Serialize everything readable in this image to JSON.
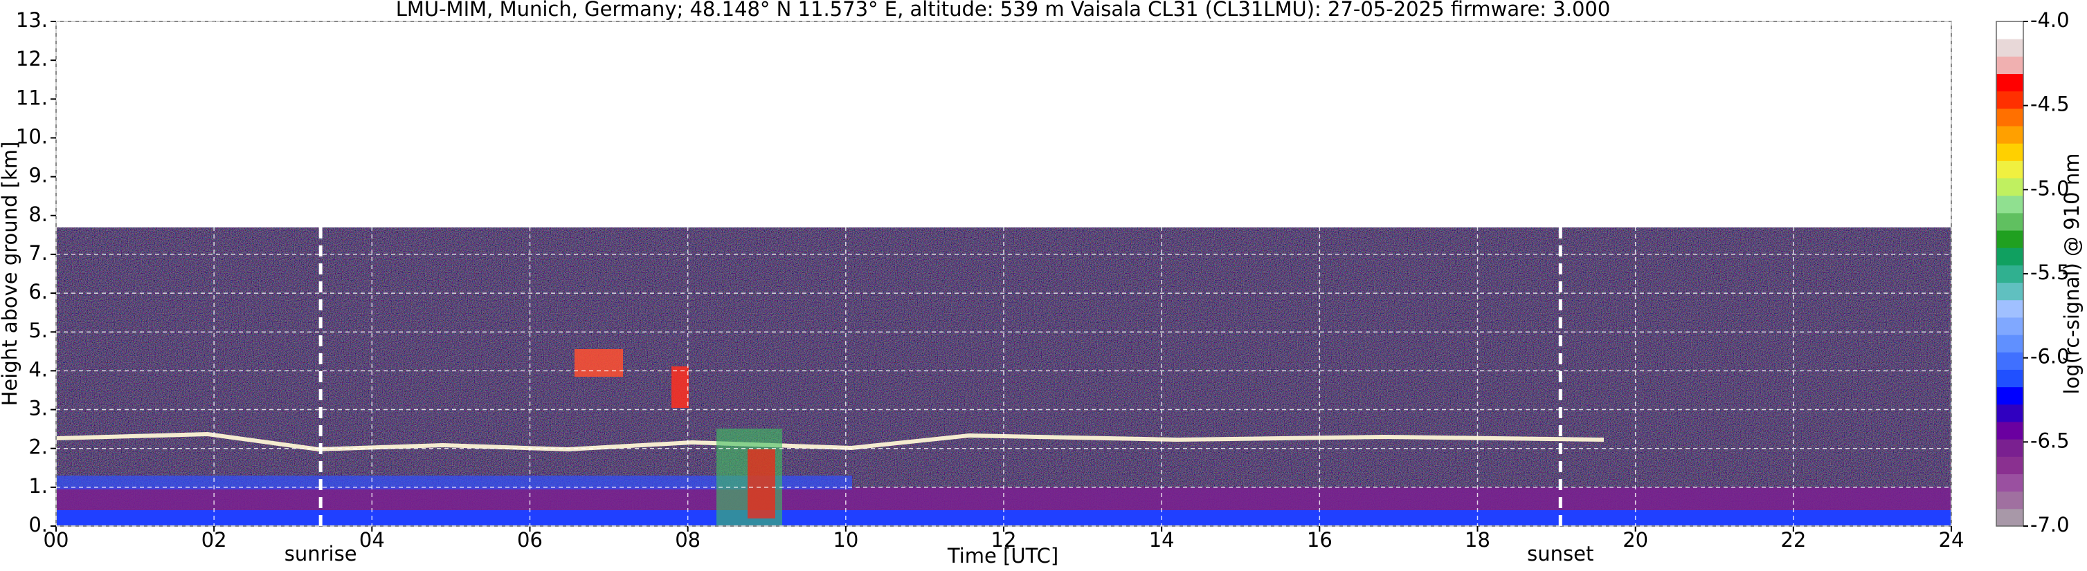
{
  "chart_data": {
    "type": "heatmap",
    "title": "LMU-MIM, Munich, Germany; 48.148° N 11.573° E, altitude: 539 m    Vaisala CL31 (CL31LMU): 27-05-2025    firmware: 3.000",
    "x_label": "Time [UTC]",
    "y_label": "Height above ground [km]",
    "colorbar_label": "log(rc-signal) @ 910 nm",
    "xlim": [
      0,
      24
    ],
    "xticks": [
      {
        "value": 0,
        "label": "00"
      },
      {
        "value": 2,
        "label": "02"
      },
      {
        "value": 4,
        "label": "04"
      },
      {
        "value": 6,
        "label": "06"
      },
      {
        "value": 8,
        "label": "08"
      },
      {
        "value": 10,
        "label": "10"
      },
      {
        "value": 12,
        "label": "12"
      },
      {
        "value": 14,
        "label": "14"
      },
      {
        "value": 16,
        "label": "16"
      },
      {
        "value": 18,
        "label": "18"
      },
      {
        "value": 20,
        "label": "20"
      },
      {
        "value": 22,
        "label": "22"
      },
      {
        "value": 24,
        "label": "24"
      }
    ],
    "ylim": [
      0,
      13
    ],
    "yticks": [
      {
        "value": 0,
        "label": "0."
      },
      {
        "value": 1,
        "label": "1."
      },
      {
        "value": 2,
        "label": "2."
      },
      {
        "value": 3,
        "label": "3."
      },
      {
        "value": 4,
        "label": "4."
      },
      {
        "value": 5,
        "label": "5."
      },
      {
        "value": 6,
        "label": "6."
      },
      {
        "value": 7,
        "label": "7."
      },
      {
        "value": 8,
        "label": "8."
      },
      {
        "value": 9,
        "label": "9."
      },
      {
        "value": 10,
        "label": "10."
      },
      {
        "value": 11,
        "label": "11."
      },
      {
        "value": 12,
        "label": "12."
      },
      {
        "value": 13,
        "label": "13."
      }
    ],
    "clim": [
      -7,
      -4
    ],
    "cticks": [
      {
        "value": -4,
        "label": "-4.0"
      },
      {
        "value": -4.5,
        "label": "-4.5"
      },
      {
        "value": -5,
        "label": "-5.0"
      },
      {
        "value": -5.5,
        "label": "-5.5"
      },
      {
        "value": -6,
        "label": "-6.0"
      },
      {
        "value": -6.5,
        "label": "-6.5"
      },
      {
        "value": -7,
        "label": "-7.0"
      }
    ],
    "colormap": [
      "#a898a8",
      "#a070a0",
      "#9a50a0",
      "#8a3090",
      "#7a2090",
      "#6a00a0",
      "#3000c0",
      "#0000ff",
      "#2050ff",
      "#4070ff",
      "#6090ff",
      "#80a8ff",
      "#a0c0ff",
      "#60c0c0",
      "#30b090",
      "#10a060",
      "#20a020",
      "#60c060",
      "#90e090",
      "#c0f060",
      "#f0f040",
      "#ffd000",
      "#ffa000",
      "#ff7000",
      "#ff3000",
      "#ff0000",
      "#f0b0b0",
      "#e8d8d8",
      "#ffffff"
    ],
    "grid": true,
    "annotations": [
      {
        "text": "sunrise",
        "x": 3.35
      },
      {
        "text": "sunset",
        "x": 19.05
      }
    ]
  }
}
